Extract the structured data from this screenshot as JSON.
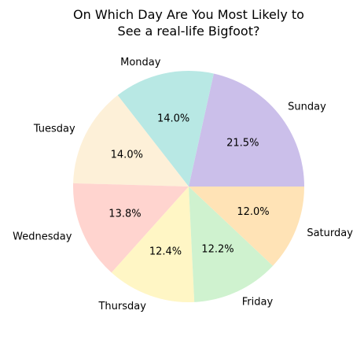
{
  "chart_data": {
    "type": "pie",
    "title_lines": [
      "On Which Day Are You Most Likely to",
      "See a real-life Bigfoot?"
    ],
    "start_angle_deg": 0,
    "direction": "counterclockwise",
    "slices": [
      {
        "label": "Sunday",
        "value": 21.5,
        "pct_text": "21.5%",
        "color": "#cbbfea"
      },
      {
        "label": "Monday",
        "value": 14.0,
        "pct_text": "14.0%",
        "color": "#b8e8e4"
      },
      {
        "label": "Tuesday",
        "value": 14.0,
        "pct_text": "14.0%",
        "color": "#fdf0d8"
      },
      {
        "label": "Wednesday",
        "value": 13.8,
        "pct_text": "13.8%",
        "color": "#ffd4cf"
      },
      {
        "label": "Thursday",
        "value": 12.4,
        "pct_text": "12.4%",
        "color": "#fff6c5"
      },
      {
        "label": "Friday",
        "value": 12.2,
        "pct_text": "12.2%",
        "color": "#cff2cf"
      },
      {
        "label": "Saturday",
        "value": 12.0,
        "pct_text": "12.0%",
        "color": "#ffe3b6"
      }
    ]
  }
}
